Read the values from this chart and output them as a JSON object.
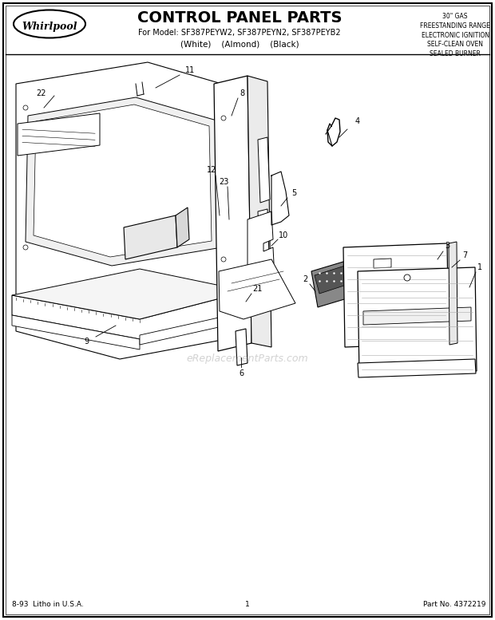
{
  "title": "CONTROL PANEL PARTS",
  "subtitle": "For Model: SF387PEYW2, SF387PEYN2, SF387PEYB2",
  "subtitle2": "(White)    (Almond)    (Black)",
  "right_text": "30\" GAS\nFREESTANDING RANGE\nELECTRONIC IGNITION\nSELF-CLEAN OVEN\nSEALED BURNER",
  "bottom_left": "8-93  Litho in U.S.A.",
  "bottom_center": "1",
  "bottom_right": "Part No. 4372219",
  "whirlpool_text": "Whirlpool",
  "watermark": "eReplacementParts.com",
  "bg_color": "#ffffff",
  "border_color": "#000000"
}
